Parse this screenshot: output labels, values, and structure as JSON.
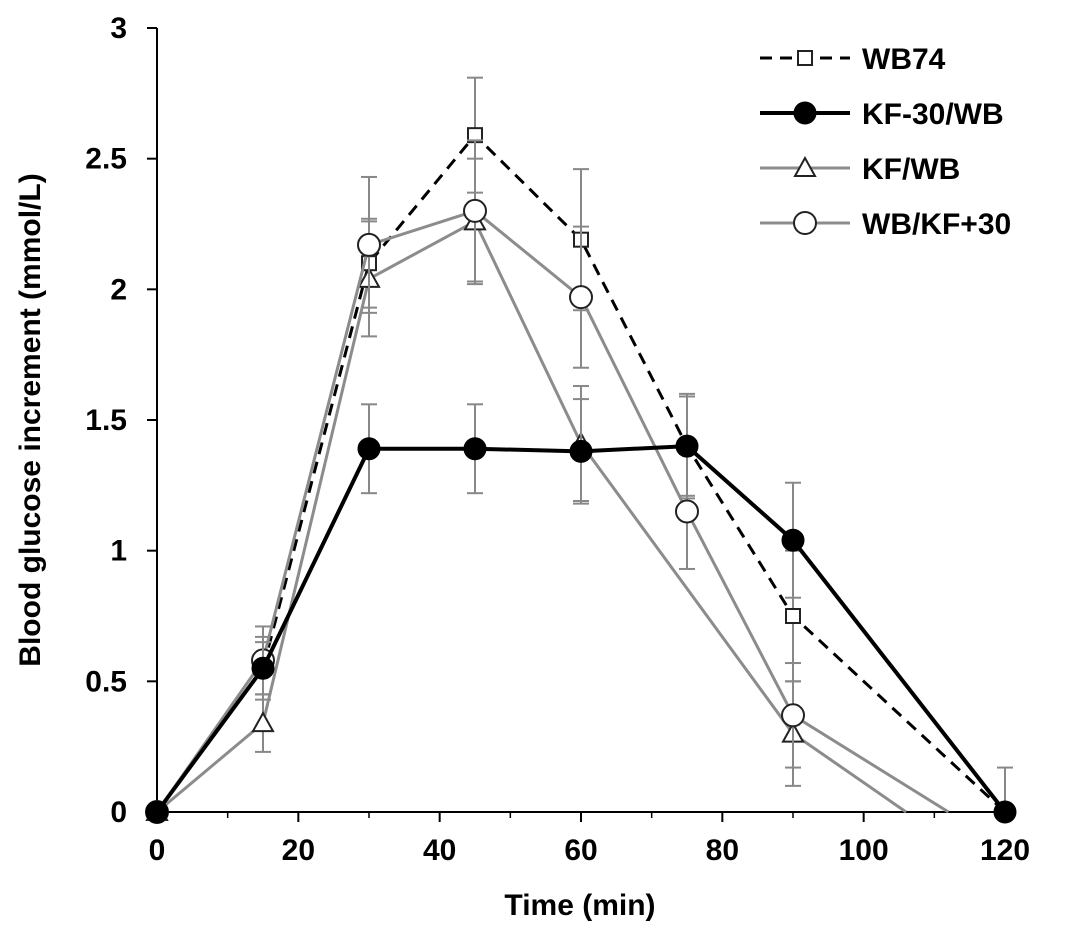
{
  "chart_data": {
    "type": "line",
    "xlabel": "Time (min)",
    "ylabel": "Blood glucose increment (mmol/L)",
    "xlim": [
      0,
      120
    ],
    "ylim": [
      0,
      3
    ],
    "x_ticks": [
      "0",
      "20",
      "40",
      "60",
      "80",
      "100",
      "120"
    ],
    "y_ticks": [
      "0",
      "0.5",
      "1",
      "1.5",
      "2",
      "2.5",
      "3"
    ],
    "grid": false,
    "legend_position": "top-right",
    "series": [
      {
        "name": "WB74",
        "color": "#000000",
        "line_style": "dashed",
        "marker": "open-square",
        "x": [
          0,
          15,
          30,
          45,
          60,
          75,
          90,
          120
        ],
        "y": [
          0,
          0.55,
          2.1,
          2.59,
          2.19,
          1.4,
          0.75,
          0
        ],
        "error": [
          0,
          0.12,
          0.17,
          0.22,
          0.27,
          0.19,
          0.25,
          0.17
        ]
      },
      {
        "name": "KF-30/WB",
        "color": "#000000",
        "line_style": "solid-thick",
        "marker": "filled-circle",
        "x": [
          0,
          15,
          30,
          45,
          60,
          75,
          90,
          120
        ],
        "y": [
          0,
          0.55,
          1.39,
          1.39,
          1.38,
          1.4,
          1.04,
          0
        ],
        "error": [
          0,
          0.1,
          0.17,
          0.17,
          0.2,
          0.2,
          0.22,
          0
        ]
      },
      {
        "name": "KF/WB",
        "color": "#8c8c8c",
        "line_style": "solid",
        "marker": "open-triangle",
        "x": [
          0,
          15,
          30,
          45,
          60,
          90,
          106
        ],
        "y": [
          0,
          0.34,
          2.04,
          2.26,
          1.41,
          0.3,
          0
        ],
        "error": [
          0,
          0.11,
          0.22,
          0.24,
          0.22,
          0.2,
          0
        ]
      },
      {
        "name": "WB/KF+30",
        "color": "#8c8c8c",
        "line_style": "solid",
        "marker": "open-circle",
        "x": [
          0,
          15,
          30,
          45,
          60,
          75,
          90,
          112
        ],
        "y": [
          0,
          0.58,
          2.17,
          2.3,
          1.97,
          1.15,
          0.37,
          0
        ],
        "error": [
          0,
          0.13,
          0.26,
          0.27,
          0.27,
          0.22,
          0.2,
          0
        ]
      }
    ]
  }
}
